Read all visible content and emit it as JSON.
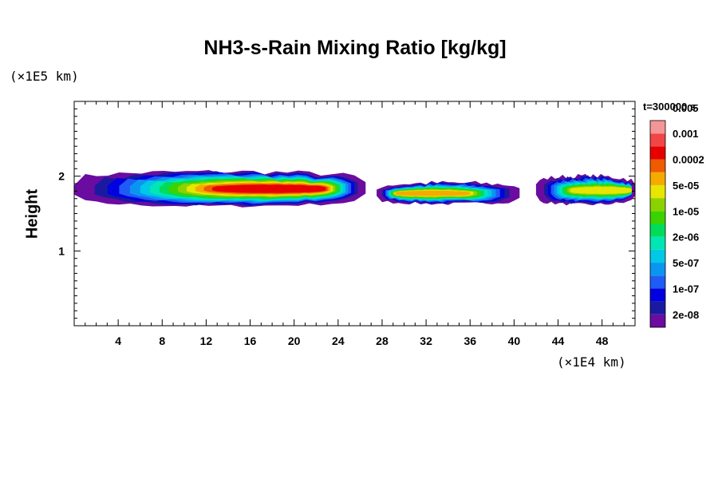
{
  "chart_data": {
    "type": "heatmap",
    "title": "NH3-s-Rain Mixing Ratio [kg/kg]",
    "xlabel": "",
    "ylabel": "Height",
    "x_unit_label": "(×1E4 km)",
    "y_unit_label": "(×1E5 km)",
    "time_label": "t=300000 s",
    "xlim": [
      0,
      51
    ],
    "ylim": [
      0,
      3
    ],
    "x_ticks": [
      4,
      8,
      12,
      16,
      20,
      24,
      28,
      32,
      36,
      40,
      44,
      48
    ],
    "y_ticks": [
      1,
      2
    ],
    "colorbar": {
      "colors": [
        "#6a0ca0",
        "#1a1aa0",
        "#0000e0",
        "#1e5cf5",
        "#0a96f0",
        "#00c8e6",
        "#00e6b4",
        "#00dc5a",
        "#3cd200",
        "#8cd200",
        "#e6e600",
        "#f5aa00",
        "#f05a00",
        "#e60000",
        "#f04646",
        "#f59696"
      ],
      "labels": [
        "2e-08",
        "1e-07",
        "5e-07",
        "2e-06",
        "1e-05",
        "5e-05",
        "0.0002",
        "0.001",
        "0.005"
      ]
    },
    "cloud_segments": [
      {
        "x_start": 0,
        "x_end": 26.5,
        "y_bottom": 1.62,
        "y_top": 2.08,
        "peak_level": 13,
        "peak_x_range": [
          13,
          23
        ]
      },
      {
        "x_start": 27.5,
        "x_end": 40.5,
        "y_bottom": 1.65,
        "y_top": 1.93,
        "peak_level": 11,
        "peak_x_range": [
          29,
          36
        ]
      },
      {
        "x_start": 42,
        "x_end": 51,
        "y_bottom": 1.64,
        "y_top": 2.02,
        "peak_level": 10,
        "peak_x_range": [
          45,
          51
        ]
      }
    ]
  }
}
